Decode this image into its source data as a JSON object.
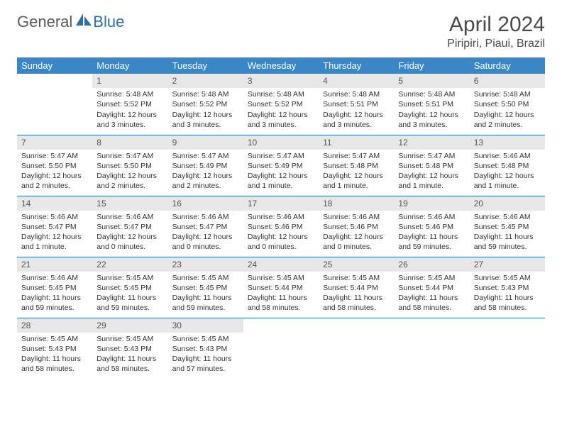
{
  "logo": {
    "part1": "General",
    "part2": "Blue"
  },
  "title": "April 2024",
  "location": "Piripiri, Piaui, Brazil",
  "colors": {
    "header_bg": "#3a87c8",
    "header_text": "#ffffff",
    "daynum_bg": "#e7e7e7",
    "rule": "#2f6fa8",
    "text": "#333333",
    "logo_gray": "#5a5a5a",
    "logo_blue": "#2f6fa8"
  },
  "weekdays": [
    "Sunday",
    "Monday",
    "Tuesday",
    "Wednesday",
    "Thursday",
    "Friday",
    "Saturday"
  ],
  "weeks": [
    [
      {
        "day": "",
        "sunrise": "",
        "sunset": "",
        "daylight": ""
      },
      {
        "day": "1",
        "sunrise": "Sunrise: 5:48 AM",
        "sunset": "Sunset: 5:52 PM",
        "daylight": "Daylight: 12 hours and 3 minutes."
      },
      {
        "day": "2",
        "sunrise": "Sunrise: 5:48 AM",
        "sunset": "Sunset: 5:52 PM",
        "daylight": "Daylight: 12 hours and 3 minutes."
      },
      {
        "day": "3",
        "sunrise": "Sunrise: 5:48 AM",
        "sunset": "Sunset: 5:52 PM",
        "daylight": "Daylight: 12 hours and 3 minutes."
      },
      {
        "day": "4",
        "sunrise": "Sunrise: 5:48 AM",
        "sunset": "Sunset: 5:51 PM",
        "daylight": "Daylight: 12 hours and 3 minutes."
      },
      {
        "day": "5",
        "sunrise": "Sunrise: 5:48 AM",
        "sunset": "Sunset: 5:51 PM",
        "daylight": "Daylight: 12 hours and 3 minutes."
      },
      {
        "day": "6",
        "sunrise": "Sunrise: 5:48 AM",
        "sunset": "Sunset: 5:50 PM",
        "daylight": "Daylight: 12 hours and 2 minutes."
      }
    ],
    [
      {
        "day": "7",
        "sunrise": "Sunrise: 5:47 AM",
        "sunset": "Sunset: 5:50 PM",
        "daylight": "Daylight: 12 hours and 2 minutes."
      },
      {
        "day": "8",
        "sunrise": "Sunrise: 5:47 AM",
        "sunset": "Sunset: 5:50 PM",
        "daylight": "Daylight: 12 hours and 2 minutes."
      },
      {
        "day": "9",
        "sunrise": "Sunrise: 5:47 AM",
        "sunset": "Sunset: 5:49 PM",
        "daylight": "Daylight: 12 hours and 2 minutes."
      },
      {
        "day": "10",
        "sunrise": "Sunrise: 5:47 AM",
        "sunset": "Sunset: 5:49 PM",
        "daylight": "Daylight: 12 hours and 1 minute."
      },
      {
        "day": "11",
        "sunrise": "Sunrise: 5:47 AM",
        "sunset": "Sunset: 5:48 PM",
        "daylight": "Daylight: 12 hours and 1 minute."
      },
      {
        "day": "12",
        "sunrise": "Sunrise: 5:47 AM",
        "sunset": "Sunset: 5:48 PM",
        "daylight": "Daylight: 12 hours and 1 minute."
      },
      {
        "day": "13",
        "sunrise": "Sunrise: 5:46 AM",
        "sunset": "Sunset: 5:48 PM",
        "daylight": "Daylight: 12 hours and 1 minute."
      }
    ],
    [
      {
        "day": "14",
        "sunrise": "Sunrise: 5:46 AM",
        "sunset": "Sunset: 5:47 PM",
        "daylight": "Daylight: 12 hours and 1 minute."
      },
      {
        "day": "15",
        "sunrise": "Sunrise: 5:46 AM",
        "sunset": "Sunset: 5:47 PM",
        "daylight": "Daylight: 12 hours and 0 minutes."
      },
      {
        "day": "16",
        "sunrise": "Sunrise: 5:46 AM",
        "sunset": "Sunset: 5:47 PM",
        "daylight": "Daylight: 12 hours and 0 minutes."
      },
      {
        "day": "17",
        "sunrise": "Sunrise: 5:46 AM",
        "sunset": "Sunset: 5:46 PM",
        "daylight": "Daylight: 12 hours and 0 minutes."
      },
      {
        "day": "18",
        "sunrise": "Sunrise: 5:46 AM",
        "sunset": "Sunset: 5:46 PM",
        "daylight": "Daylight: 12 hours and 0 minutes."
      },
      {
        "day": "19",
        "sunrise": "Sunrise: 5:46 AM",
        "sunset": "Sunset: 5:46 PM",
        "daylight": "Daylight: 11 hours and 59 minutes."
      },
      {
        "day": "20",
        "sunrise": "Sunrise: 5:46 AM",
        "sunset": "Sunset: 5:45 PM",
        "daylight": "Daylight: 11 hours and 59 minutes."
      }
    ],
    [
      {
        "day": "21",
        "sunrise": "Sunrise: 5:46 AM",
        "sunset": "Sunset: 5:45 PM",
        "daylight": "Daylight: 11 hours and 59 minutes."
      },
      {
        "day": "22",
        "sunrise": "Sunrise: 5:45 AM",
        "sunset": "Sunset: 5:45 PM",
        "daylight": "Daylight: 11 hours and 59 minutes."
      },
      {
        "day": "23",
        "sunrise": "Sunrise: 5:45 AM",
        "sunset": "Sunset: 5:45 PM",
        "daylight": "Daylight: 11 hours and 59 minutes."
      },
      {
        "day": "24",
        "sunrise": "Sunrise: 5:45 AM",
        "sunset": "Sunset: 5:44 PM",
        "daylight": "Daylight: 11 hours and 58 minutes."
      },
      {
        "day": "25",
        "sunrise": "Sunrise: 5:45 AM",
        "sunset": "Sunset: 5:44 PM",
        "daylight": "Daylight: 11 hours and 58 minutes."
      },
      {
        "day": "26",
        "sunrise": "Sunrise: 5:45 AM",
        "sunset": "Sunset: 5:44 PM",
        "daylight": "Daylight: 11 hours and 58 minutes."
      },
      {
        "day": "27",
        "sunrise": "Sunrise: 5:45 AM",
        "sunset": "Sunset: 5:43 PM",
        "daylight": "Daylight: 11 hours and 58 minutes."
      }
    ],
    [
      {
        "day": "28",
        "sunrise": "Sunrise: 5:45 AM",
        "sunset": "Sunset: 5:43 PM",
        "daylight": "Daylight: 11 hours and 58 minutes."
      },
      {
        "day": "29",
        "sunrise": "Sunrise: 5:45 AM",
        "sunset": "Sunset: 5:43 PM",
        "daylight": "Daylight: 11 hours and 58 minutes."
      },
      {
        "day": "30",
        "sunrise": "Sunrise: 5:45 AM",
        "sunset": "Sunset: 5:43 PM",
        "daylight": "Daylight: 11 hours and 57 minutes."
      },
      {
        "day": "",
        "sunrise": "",
        "sunset": "",
        "daylight": ""
      },
      {
        "day": "",
        "sunrise": "",
        "sunset": "",
        "daylight": ""
      },
      {
        "day": "",
        "sunrise": "",
        "sunset": "",
        "daylight": ""
      },
      {
        "day": "",
        "sunrise": "",
        "sunset": "",
        "daylight": ""
      }
    ]
  ]
}
